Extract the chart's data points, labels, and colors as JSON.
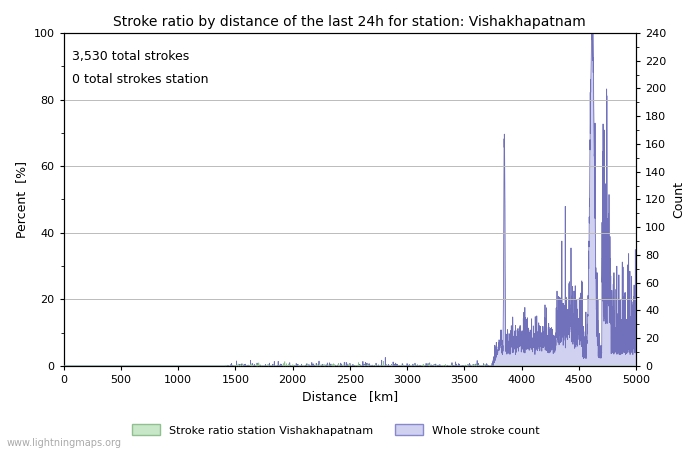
{
  "title": "Stroke ratio by distance of the last 24h for station: Vishakhapatnam",
  "annotation_line1": "3,530 total strokes",
  "annotation_line2": "0 total strokes station",
  "xlabel": "Distance   [km]",
  "ylabel_left": "Percent  [%]",
  "ylabel_right": "Count",
  "xlim": [
    0,
    5000
  ],
  "ylim_left": [
    0,
    100
  ],
  "ylim_right": [
    0,
    240
  ],
  "yticks_left": [
    0,
    20,
    40,
    60,
    80,
    100
  ],
  "yticks_right": [
    0,
    20,
    40,
    60,
    80,
    100,
    120,
    140,
    160,
    180,
    200,
    220,
    240
  ],
  "xticks": [
    0,
    500,
    1000,
    1500,
    2000,
    2500,
    3000,
    3500,
    4000,
    4500,
    5000
  ],
  "legend_entries": [
    "Stroke ratio station Vishakhapatnam",
    "Whole stroke count"
  ],
  "legend_colors_fill": [
    "#c8e6c8",
    "#d0d0f0"
  ],
  "legend_colors_edge": [
    "#90c090",
    "#8888cc"
  ],
  "stroke_ratio_fill_color": "#c8e6c8",
  "stroke_ratio_line_color": "#90c090",
  "whole_stroke_fill_color": "#d0d0f0",
  "whole_stroke_line_color": "#7070bb",
  "background_color": "#ffffff",
  "grid_color": "#bbbbbb",
  "title_fontsize": 10,
  "axis_label_fontsize": 9,
  "tick_fontsize": 8,
  "annotation_fontsize": 9,
  "watermark": "www.lightningmaps.org",
  "watermark_fontsize": 7,
  "watermark_color": "#aaaaaa"
}
